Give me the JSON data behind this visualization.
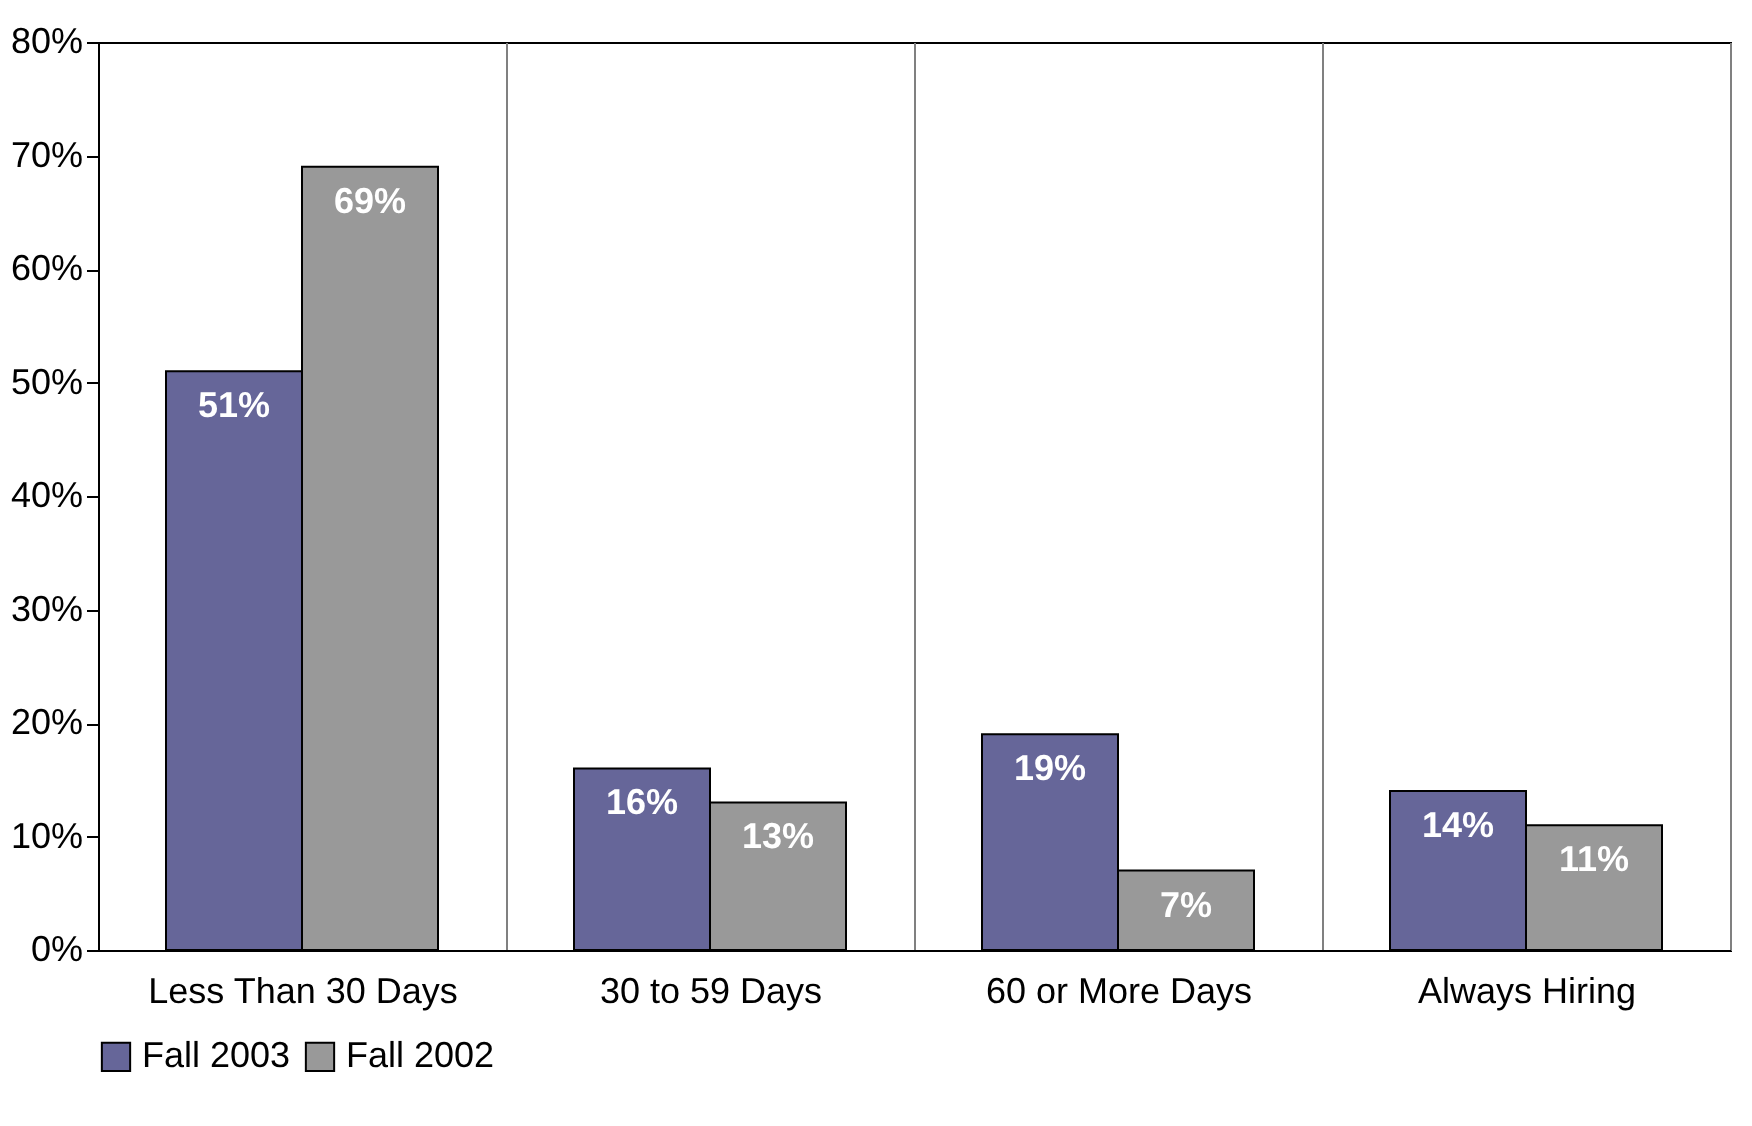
{
  "chart_data": {
    "type": "bar",
    "categories": [
      "Less Than 30 Days",
      "30 to 59 Days",
      "60 or More Days",
      "Always Hiring"
    ],
    "series": [
      {
        "name": "Fall 2003",
        "color": "#666699",
        "values": [
          51,
          16,
          19,
          14
        ],
        "value_labels": [
          "51%",
          "16%",
          "19%",
          "14%"
        ]
      },
      {
        "name": "Fall 2002",
        "color": "#999999",
        "values": [
          69,
          13,
          7,
          11
        ],
        "value_labels": [
          "69%",
          "13%",
          "7%",
          "11%"
        ]
      }
    ],
    "ylim": [
      0,
      80
    ],
    "yticks": [
      {
        "value": 0,
        "label": "0%"
      },
      {
        "value": 10,
        "label": "10%"
      },
      {
        "value": 20,
        "label": "20%"
      },
      {
        "value": 30,
        "label": "30%"
      },
      {
        "value": 40,
        "label": "40%"
      },
      {
        "value": 50,
        "label": "50%"
      },
      {
        "value": 60,
        "label": "60%"
      },
      {
        "value": 70,
        "label": "70%"
      },
      {
        "value": 80,
        "label": "80%"
      }
    ],
    "grid": "x",
    "legend": "bottom"
  }
}
